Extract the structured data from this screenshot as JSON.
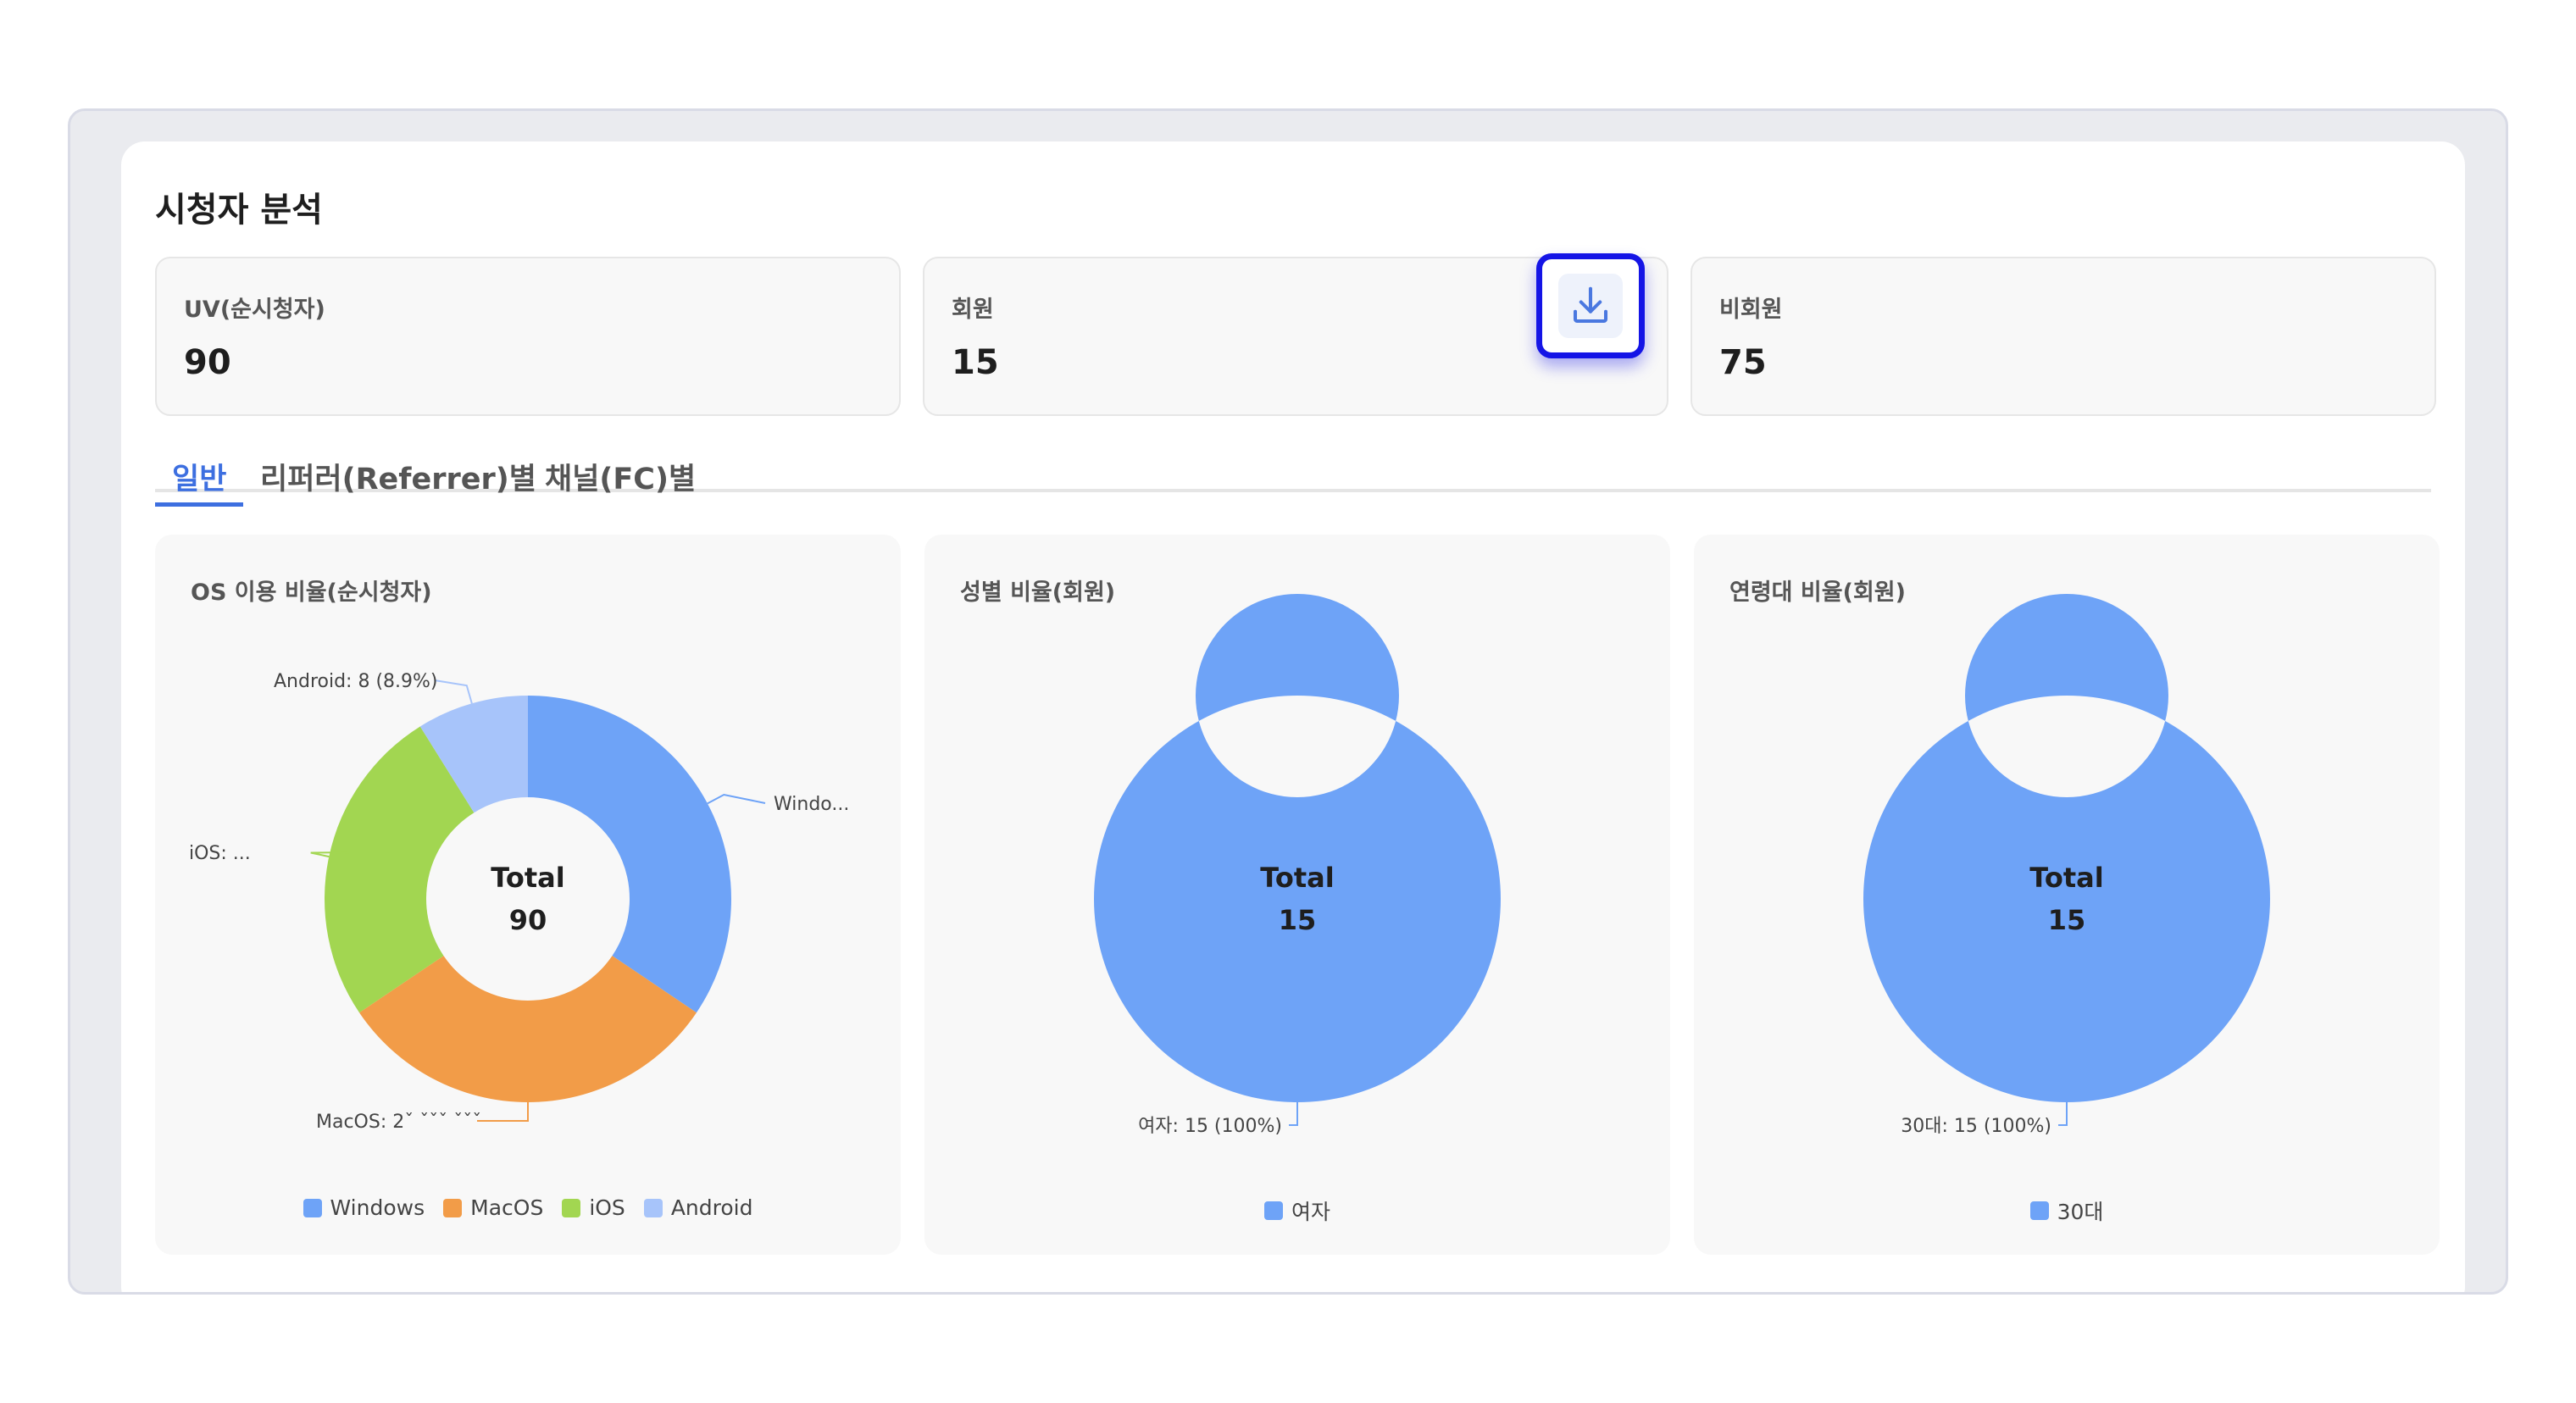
{
  "page": {
    "title": "시청자 분석"
  },
  "stats": [
    {
      "label": "UV(순시청자)",
      "value": "90"
    },
    {
      "label": "회원",
      "value": "15"
    },
    {
      "label": "비회원",
      "value": "75"
    }
  ],
  "download_icon": "download-icon",
  "tabs": [
    {
      "label": "일반",
      "active": true
    },
    {
      "label": "리퍼러(Referrer)별",
      "active": false
    },
    {
      "label": "채널(FC)별",
      "active": false
    }
  ],
  "colors": {
    "accent": "#3d6fe0",
    "windows": "#6ea3f7",
    "macos": "#f29c48",
    "ios": "#a2d651",
    "android": "#a7c4fa"
  },
  "chart_data": [
    {
      "type": "pie",
      "title": "OS 이용 비율(순시청자)",
      "center_label": "Total",
      "center_value": "90",
      "categories": [
        "Windows",
        "MacOS",
        "iOS",
        "Android"
      ],
      "values": [
        31,
        28,
        23,
        8
      ],
      "colors": [
        "#6ea3f7",
        "#f29c48",
        "#a2d651",
        "#a7c4fa"
      ],
      "labels": [
        "Windo...",
        "MacOS: 2ˇ ˇˇˇ ˇˇˇ",
        "iOS: ...",
        "Android: 8 (8.9%)"
      ],
      "legend": [
        "Windows",
        "MacOS",
        "iOS",
        "Android"
      ]
    },
    {
      "type": "pie",
      "title": "성별 비율(회원)",
      "center_label": "Total",
      "center_value": "15",
      "categories": [
        "여자"
      ],
      "values": [
        15
      ],
      "colors": [
        "#6ea3f7"
      ],
      "labels": [
        "여자: 15 (100%)"
      ],
      "legend": [
        "여자"
      ]
    },
    {
      "type": "pie",
      "title": "연령대 비율(회원)",
      "center_label": "Total",
      "center_value": "15",
      "categories": [
        "30대"
      ],
      "values": [
        15
      ],
      "colors": [
        "#6ea3f7"
      ],
      "labels": [
        "30대: 15 (100%)"
      ],
      "legend": [
        "30대"
      ]
    }
  ]
}
